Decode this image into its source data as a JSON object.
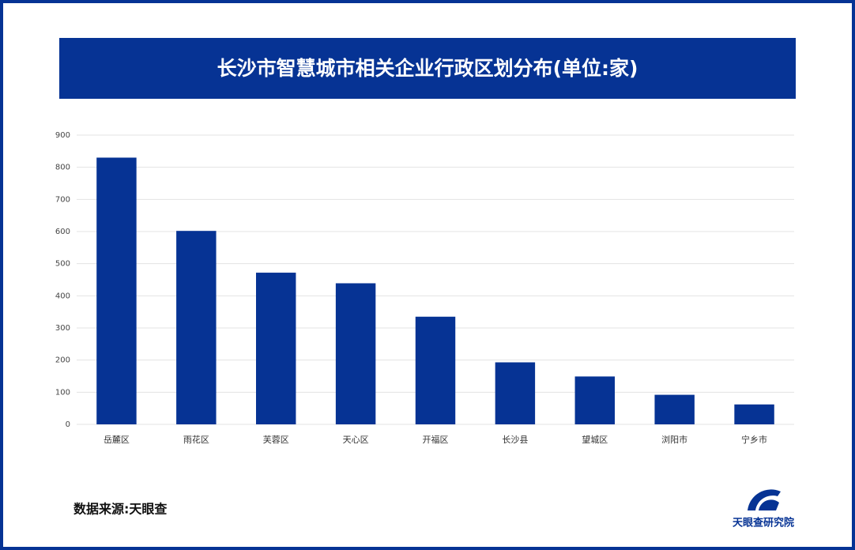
{
  "chart_data": {
    "type": "bar",
    "title": "长沙市智慧城市相关企业行政区划分布(单位:家)",
    "categories": [
      "岳麓区",
      "雨花区",
      "芙蓉区",
      "天心区",
      "开福区",
      "长沙县",
      "望城区",
      "浏阳市",
      "宁乡市"
    ],
    "values": [
      830,
      602,
      472,
      439,
      335,
      193,
      149,
      92,
      62
    ],
    "color": "#063394",
    "ylim": [
      0,
      900
    ],
    "yticks": [
      0,
      100,
      200,
      300,
      400,
      500,
      600,
      700,
      800,
      900
    ],
    "grid": true,
    "source": "数据来源:天眼查",
    "brand": "天眼查研究院"
  }
}
